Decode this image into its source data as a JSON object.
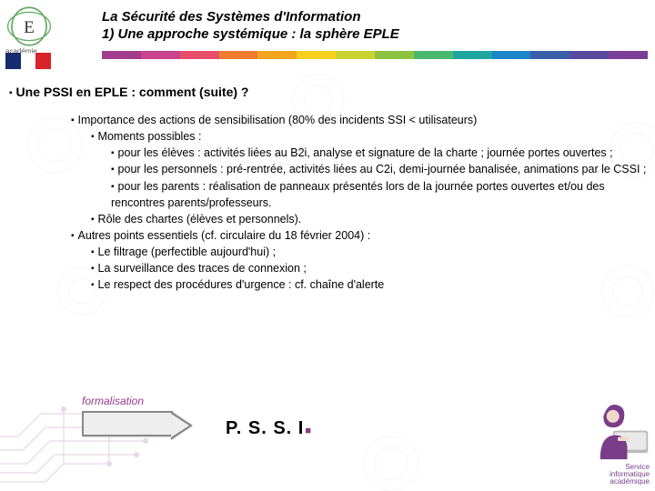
{
  "header": {
    "logo_label": "académie\nRennes",
    "title_line1": "La Sécurité des Systèmes d'Information",
    "title_line2": "1) Une approche systémique : la sphère EPLE"
  },
  "color_bar": [
    "#a23c8e",
    "#c9438f",
    "#e94f6a",
    "#ee7c2e",
    "#f4a51f",
    "#f7cf1c",
    "#c8d331",
    "#8bc540",
    "#4ab96b",
    "#1fa6a0",
    "#1c86c7",
    "#3b5ea9",
    "#5a4a9f",
    "#7b3f98"
  ],
  "section_heading": "Une PSSI en EPLE : comment (suite) ?",
  "bullets": {
    "b1": "Importance des actions de sensibilisation (80% des incidents SSI < utilisateurs)",
    "b1_1": "Moments possibles :",
    "b1_1_a": "pour les élèves : activités liées au B2i, analyse et signature de la charte ; journée portes ouvertes ;",
    "b1_1_b": "pour les personnels : pré-rentrée, activités liées au C2i, demi-journée banalisée, animations par le CSSI ;",
    "b1_1_c": "pour les parents : réalisation de panneaux présentés lors de la journée portes ouvertes et/ou des rencontres parents/professeurs.",
    "b1_2": "Rôle des chartes (élèves et personnels).",
    "b2": "Autres points essentiels (cf. circulaire du 18 février 2004) :",
    "b2_1": "Le filtrage (perfectible aujourd'hui) ;",
    "b2_2": "La surveillance des traces de connexion ;",
    "b2_3": "Le respect des procédures d'urgence : cf. chaîne d'alerte"
  },
  "arrow_label": "formalisation",
  "pssi_text": "P. S. S. I",
  "footer_label": "Service\ninformatique\nacadémique",
  "colors": {
    "flag": [
      "#162b6f",
      "#ffffff",
      "#d8232a"
    ],
    "purple": "#7a3d8a"
  }
}
